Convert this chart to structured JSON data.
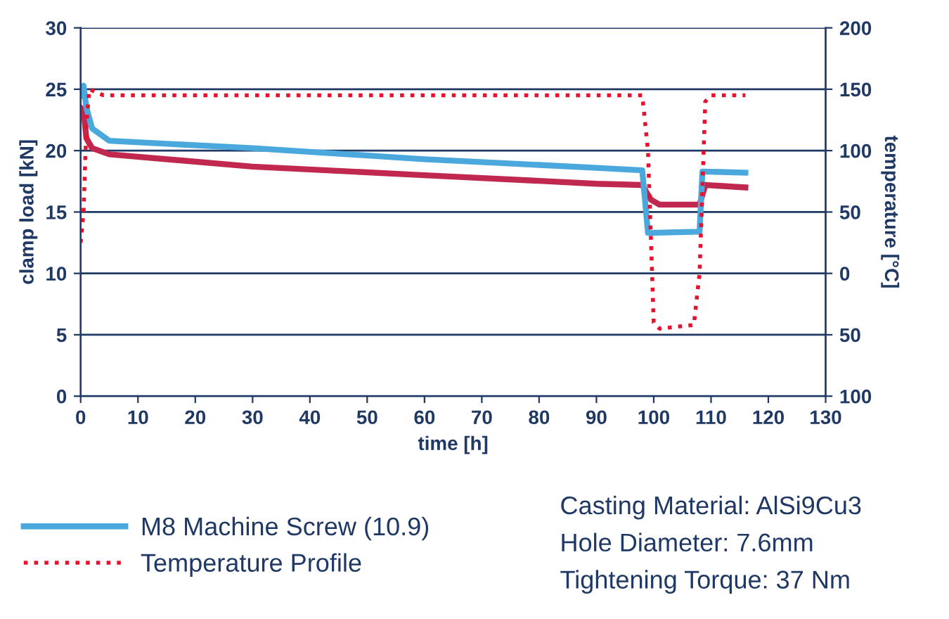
{
  "chart_data": {
    "type": "line",
    "xlabel": "time [h]",
    "ylabel": "clamp load [kN]",
    "y2label": "temperature [°C]",
    "xlim": [
      0,
      130
    ],
    "xticks": [
      0,
      10,
      20,
      30,
      40,
      50,
      60,
      70,
      80,
      90,
      100,
      110,
      120,
      130
    ],
    "ylim": [
      0,
      30
    ],
    "yticks": [
      0,
      5,
      10,
      15,
      20,
      25,
      30
    ],
    "y2lim": [
      -100,
      200
    ],
    "y2ticks": [
      {
        "value": -100,
        "label": "100"
      },
      {
        "value": -50,
        "label": "50"
      },
      0,
      50,
      100,
      150,
      200
    ],
    "grid": "y",
    "legend": "bottom",
    "line_style": "solid",
    "series": [
      {
        "color": "#c0284f",
        "x": [
          0,
          0.5,
          1,
          2,
          5,
          30,
          60,
          90,
          98,
          99.5,
          101,
          108,
          109,
          116
        ],
        "values": [
          23.5,
          23.3,
          21,
          20.2,
          19.7,
          18.7,
          18.0,
          17.3,
          17.2,
          16,
          15.6,
          15.6,
          17.2,
          17.0
        ]
      },
      {
        "name": "M8 Machine Screw (10.9)",
        "color": "#4aa8dc",
        "x": [
          0,
          0.5,
          1,
          2,
          5,
          30,
          60,
          90,
          98,
          99,
          108,
          108.5,
          116
        ],
        "values": [
          24.5,
          25.3,
          23.5,
          21.8,
          20.8,
          20.2,
          19.3,
          18.6,
          18.4,
          13.3,
          13.4,
          18.3,
          18.2
        ]
      },
      {
        "name": "Temperature Profile",
        "color": "#e8112d",
        "axis": "y2",
        "line_style": "dotted",
        "x": [
          0,
          0.5,
          1,
          1.5,
          4,
          98,
          99,
          100,
          101,
          107,
          108,
          109,
          110,
          116
        ],
        "values": [
          25,
          50,
          120,
          150,
          145,
          145,
          100,
          -40,
          -45,
          -42,
          0,
          140,
          145,
          145
        ]
      }
    ],
    "annotations": [
      "Casting Material: AlSi9Cu3",
      "Hole Diameter: 7.6mm",
      "Tightening Torque: 37 Nm"
    ]
  }
}
